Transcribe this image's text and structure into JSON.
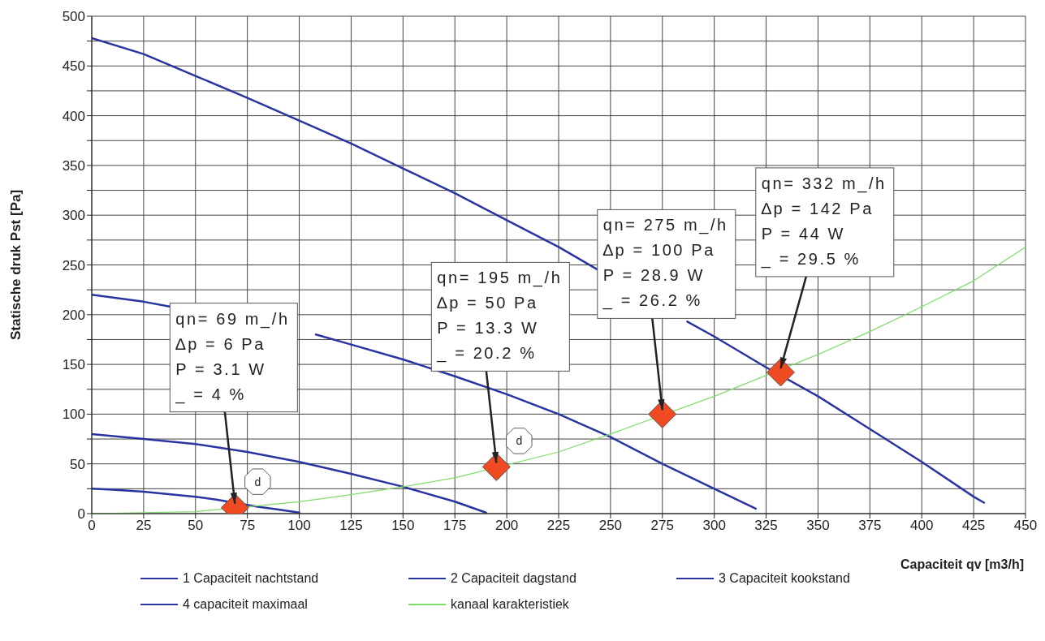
{
  "chart_data": {
    "type": "line",
    "xlabel": "Capaciteit qv [m3/h]",
    "ylabel": "Statische druk Pst [Pa]",
    "xlim": [
      0,
      450
    ],
    "xticks": [
      0,
      25,
      50,
      75,
      100,
      125,
      150,
      175,
      200,
      225,
      250,
      275,
      300,
      325,
      350,
      375,
      400,
      425,
      450
    ],
    "ylim": [
      0,
      500
    ],
    "yticks": [
      0,
      {
        "value": 25,
        "label": null
      },
      50,
      {
        "value": 75,
        "label": null
      },
      100,
      {
        "value": 125,
        "label": null
      },
      150,
      {
        "value": 175,
        "label": null
      },
      200,
      {
        "value": 225,
        "label": null
      },
      250,
      {
        "value": 275,
        "label": null
      },
      300,
      {
        "value": 325,
        "label": null
      },
      350,
      {
        "value": 375,
        "label": null
      },
      400,
      {
        "value": 425,
        "label": null
      },
      450,
      {
        "value": 475,
        "label": null
      },
      500
    ],
    "grid": true,
    "legend": "bottom",
    "marker": "none",
    "line_style": "solid",
    "series": [
      {
        "name": "1 Capaciteit nachtstand",
        "color": "#2a34a0",
        "x": [
          0,
          10,
          25,
          40,
          50,
          60,
          80,
          90,
          100
        ],
        "values": [
          25,
          24,
          22,
          19,
          17,
          14,
          7,
          4,
          1
        ]
      },
      {
        "name": "2 Capaciteit dagstand",
        "color": "#2a34a0",
        "x": [
          0,
          25,
          50,
          75,
          100,
          125,
          150,
          175,
          190
        ],
        "values": [
          80,
          75,
          70,
          62,
          52,
          40,
          27,
          12,
          1
        ]
      },
      {
        "name": "3 Capaciteit kookstand",
        "color": "#2a34a0",
        "x": [
          0,
          25,
          38,
          60,
          108,
          125,
          150,
          175,
          200,
          225,
          250,
          275,
          300,
          320
        ],
        "values": [
          220,
          213,
          208,
          null,
          180,
          170,
          155,
          138,
          120,
          100,
          77,
          50,
          25,
          5
        ]
      },
      {
        "name": "4 capaciteit maximaal",
        "color": "#2a34a0",
        "x": [
          0,
          25,
          50,
          75,
          100,
          125,
          150,
          175,
          200,
          225,
          244,
          265,
          287,
          300,
          325,
          350,
          375,
          400,
          425,
          430
        ],
        "values": [
          478,
          462,
          440,
          418,
          395,
          372,
          347,
          322,
          295,
          268,
          245,
          null,
          193,
          178,
          147,
          118,
          85,
          52,
          17,
          11
        ]
      },
      {
        "name": "kanaal karakteristiek",
        "color": "#7fdc6a",
        "x": [
          0,
          25,
          50,
          100,
          125,
          150,
          175,
          225,
          250,
          300,
          350,
          375,
          400,
          425,
          450
        ],
        "values": [
          0,
          1,
          2,
          12,
          19,
          27,
          36,
          62,
          80,
          118,
          160,
          183,
          208,
          234,
          268
        ]
      },
      {
        "type": "scatter",
        "color": "#f04a23",
        "marker": "diamond",
        "x": [
          69,
          195,
          275,
          332
        ],
        "values": [
          6,
          47,
          100,
          142
        ]
      }
    ],
    "annotations": [
      {
        "text": "qn= 69 m_/h\n∆p = 6 Pa\nP = 3.1 W\n_ = 4 %",
        "x": 69,
        "y": 6
      },
      {
        "text": "qn= 195 m_/h\n∆p = 50 Pa\nP = 13.3 W\n_ = 20.2 %",
        "x": 195,
        "y": 47
      },
      {
        "text": "qn= 275 m_/h\n∆p = 100 Pa\nP = 28.9 W\n_ = 26.2 %",
        "x": 275,
        "y": 100
      },
      {
        "text": "qn= 332 m_/h\n∆p = 142 Pa\nP = 44 W\n_ = 29.5 %",
        "x": 332,
        "y": 142
      },
      {
        "text": "d",
        "x": 69,
        "y": 6
      },
      {
        "text": "d",
        "x": 195,
        "y": 47
      }
    ]
  }
}
